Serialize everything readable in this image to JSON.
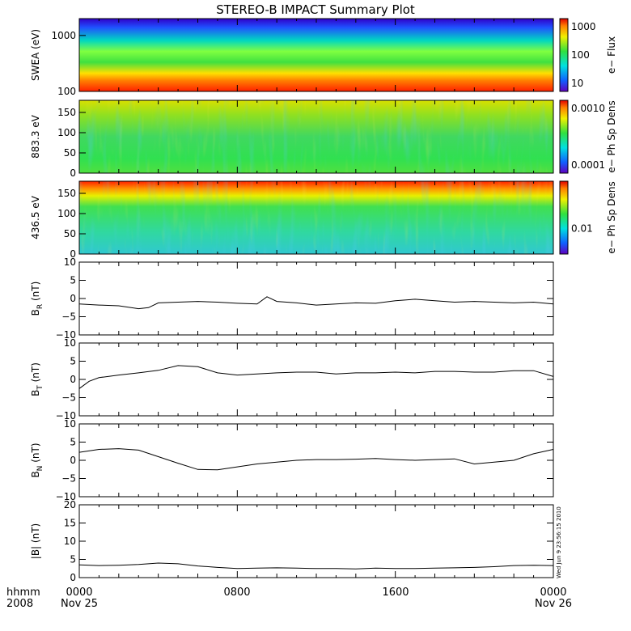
{
  "title": "STEREO-B IMPACT Summary Plot",
  "stamp": "Wed Jun  9 23:56:15 2010",
  "x_axis": {
    "row1": [
      "hhmm",
      "0000",
      "0800",
      "1600",
      "0000"
    ],
    "row2": [
      "2008",
      "Nov 25",
      "Nov 26"
    ]
  },
  "chart_data": [
    {
      "type": "heatmap",
      "ylabel": "SWEA (eV)",
      "ylog": true,
      "ylim": [
        100,
        2000
      ],
      "yticks": [
        "1000",
        "100"
      ],
      "colorbar": {
        "label": "e−  Flux",
        "ticks": [
          "1000",
          "100",
          "10"
        ]
      }
    },
    {
      "type": "heatmap",
      "ylabel": "883.3  eV",
      "ylim": [
        0,
        180
      ],
      "yticks": [
        "150",
        "100",
        "50",
        "0"
      ],
      "colorbar": {
        "label": "e−  Ph  Sp  Dens",
        "ticks": [
          "0.0010",
          "0.0001"
        ]
      }
    },
    {
      "type": "heatmap",
      "ylabel": "436.5  eV",
      "ylim": [
        0,
        180
      ],
      "yticks": [
        "150",
        "100",
        "50",
        "0"
      ],
      "colorbar": {
        "label": "e−  Ph  Sp  Dens",
        "ticks": [
          "0.01"
        ]
      }
    },
    {
      "type": "line",
      "ylabel": "B_R (nT)",
      "ylim": [
        -10,
        10
      ],
      "yticks": [
        "10",
        "5",
        "0",
        "−5",
        "−10"
      ],
      "x_hours": [
        0,
        1,
        2,
        3,
        3.5,
        4,
        5,
        6,
        7,
        8,
        9,
        9.5,
        10,
        11,
        12,
        13,
        14,
        15,
        16,
        17,
        18,
        19,
        20,
        21,
        22,
        23,
        24
      ],
      "values": [
        -1.5,
        -1.8,
        -2.0,
        -2.8,
        -2.5,
        -1.2,
        -1.0,
        -0.8,
        -1.0,
        -1.3,
        -1.5,
        0.5,
        -0.8,
        -1.2,
        -1.8,
        -1.5,
        -1.2,
        -1.3,
        -0.6,
        -0.2,
        -0.6,
        -1.0,
        -0.8,
        -1.0,
        -1.2,
        -1.0,
        -1.5
      ]
    },
    {
      "type": "line",
      "ylabel": "B_T (nT)",
      "ylim": [
        -10,
        10
      ],
      "yticks": [
        "10",
        "5",
        "0",
        "−5",
        "−10"
      ],
      "x_hours": [
        0,
        0.5,
        1,
        2,
        3,
        4,
        5,
        6,
        7,
        8,
        9,
        10,
        11,
        12,
        13,
        14,
        15,
        16,
        17,
        18,
        19,
        20,
        21,
        22,
        23,
        24
      ],
      "values": [
        -2.5,
        -0.5,
        0.5,
        1.2,
        1.8,
        2.5,
        3.8,
        3.5,
        1.8,
        1.2,
        1.5,
        1.8,
        2.0,
        2.0,
        1.5,
        1.8,
        1.8,
        2.0,
        1.8,
        2.2,
        2.2,
        2.0,
        2.0,
        2.4,
        2.4,
        0.8
      ]
    },
    {
      "type": "line",
      "ylabel": "B_N (nT)",
      "ylim": [
        -10,
        10
      ],
      "yticks": [
        "10",
        "5",
        "0",
        "−5",
        "−10"
      ],
      "x_hours": [
        0,
        1,
        2,
        3,
        4,
        5,
        6,
        7,
        8,
        9,
        10,
        11,
        12,
        13,
        14,
        15,
        16,
        17,
        18,
        19,
        20,
        21,
        22,
        23,
        24
      ],
      "values": [
        2.2,
        3.0,
        3.2,
        2.8,
        1.0,
        -0.8,
        -2.5,
        -2.6,
        -1.8,
        -1.0,
        -0.5,
        0.0,
        0.2,
        0.2,
        0.3,
        0.5,
        0.2,
        0.0,
        0.2,
        0.4,
        -1.0,
        -0.5,
        0.0,
        1.8,
        3.0
      ]
    },
    {
      "type": "line",
      "ylabel": "|B| (nT)",
      "ylim": [
        0,
        20
      ],
      "yticks": [
        "20",
        "15",
        "10",
        "5",
        "0"
      ],
      "x_hours": [
        0,
        1,
        2,
        3,
        4,
        5,
        6,
        7,
        8,
        9,
        10,
        11,
        12,
        13,
        14,
        15,
        16,
        17,
        18,
        19,
        20,
        21,
        22,
        23,
        24
      ],
      "values": [
        3.5,
        3.3,
        3.4,
        3.6,
        4.0,
        3.8,
        3.2,
        2.8,
        2.5,
        2.6,
        2.7,
        2.6,
        2.5,
        2.5,
        2.4,
        2.6,
        2.5,
        2.5,
        2.6,
        2.7,
        2.8,
        3.0,
        3.3,
        3.4,
        3.3
      ]
    }
  ]
}
